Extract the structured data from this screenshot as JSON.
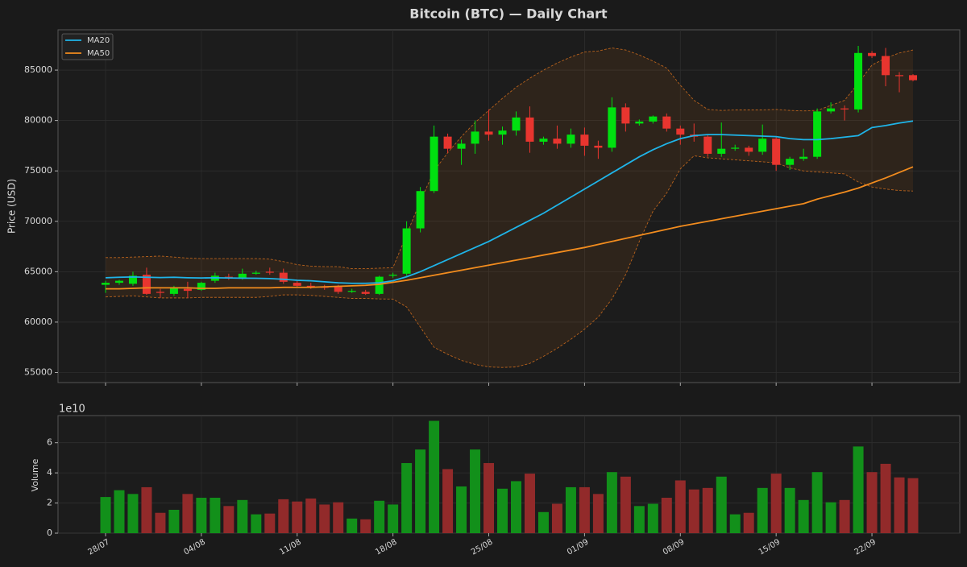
{
  "chart_data": [
    {
      "type": "candlestick",
      "title": "Bitcoin (BTC) — Daily Chart",
      "ylabel": "Price (USD)",
      "categories": [
        "28/07",
        null,
        null,
        null,
        null,
        null,
        null,
        "04/08",
        null,
        null,
        null,
        null,
        null,
        null,
        "11/08",
        null,
        null,
        null,
        null,
        null,
        null,
        "18/08",
        null,
        null,
        null,
        null,
        null,
        null,
        "25/08",
        null,
        null,
        null,
        null,
        null,
        null,
        "01/09",
        null,
        null,
        null,
        null,
        null,
        null,
        "08/09",
        null,
        null,
        null,
        null,
        null,
        null,
        "15/09",
        null,
        null,
        null,
        null,
        null,
        null,
        "22/09",
        null,
        null,
        null
      ],
      "open": [
        63700,
        63900,
        63800,
        64700,
        63000,
        62800,
        63300,
        63200,
        64100,
        64500,
        64300,
        64800,
        65000,
        64900,
        63900,
        63600,
        63500,
        63500,
        63000,
        63000,
        62800,
        64600,
        64800,
        69300,
        73000,
        78400,
        77200,
        77700,
        78900,
        78600,
        79000,
        80300,
        77900,
        78200,
        77700,
        78600,
        77500,
        77300,
        81300,
        79700,
        79900,
        80400,
        79200,
        78600,
        78400,
        76700,
        77200,
        77300,
        76900,
        78200,
        75600,
        76200,
        76400,
        80900,
        81200,
        81100,
        86700,
        86400,
        84500,
        84500
      ],
      "high": [
        64100,
        64200,
        65000,
        65400,
        63300,
        63600,
        64000,
        64000,
        64900,
        64800,
        65300,
        65100,
        65400,
        65300,
        64100,
        63900,
        63700,
        63700,
        63300,
        63200,
        64600,
        64900,
        70000,
        73400,
        79500,
        78700,
        78100,
        80000,
        81100,
        79400,
        80900,
        81400,
        78400,
        79500,
        79200,
        79300,
        78000,
        82300,
        81700,
        80100,
        80500,
        80700,
        79500,
        79700,
        78600,
        79800,
        77600,
        77500,
        79600,
        78400,
        76400,
        77200,
        81200,
        81800,
        81500,
        87400,
        86900,
        87200,
        84800,
        84600
      ],
      "low": [
        62900,
        63700,
        63600,
        62700,
        62400,
        62600,
        62400,
        63100,
        63900,
        64200,
        64200,
        64700,
        64700,
        63800,
        63500,
        63300,
        63200,
        62800,
        62900,
        62700,
        62700,
        64400,
        64600,
        68900,
        72800,
        76800,
        75600,
        76700,
        78000,
        77600,
        78500,
        76800,
        77600,
        77200,
        77300,
        76500,
        76200,
        76900,
        78900,
        79500,
        79700,
        78900,
        77600,
        77900,
        76400,
        76400,
        77000,
        76500,
        76600,
        75000,
        75100,
        76000,
        76200,
        80700,
        80000,
        80800,
        86200,
        83400,
        82800,
        83900
      ],
      "close": [
        63900,
        64100,
        64600,
        62800,
        62900,
        63400,
        63100,
        63900,
        64600,
        64400,
        64800,
        64900,
        64900,
        64000,
        63600,
        63500,
        63400,
        63000,
        63100,
        62800,
        64500,
        64700,
        69300,
        73000,
        78400,
        77200,
        77700,
        78900,
        78600,
        79000,
        80300,
        77900,
        78200,
        77700,
        78600,
        77500,
        77300,
        81300,
        79700,
        79900,
        80400,
        79200,
        78600,
        78400,
        76700,
        77200,
        77300,
        76900,
        78200,
        75600,
        76200,
        76400,
        80900,
        81200,
        81100,
        86700,
        86400,
        84500,
        84400,
        84000
      ],
      "up_color": "#00e010",
      "down_color": "#e8352f",
      "series": [
        {
          "name": "MA20",
          "color": "#1fb4e8",
          "values": [
            64400,
            64450,
            64480,
            64450,
            64420,
            64450,
            64400,
            64380,
            64400,
            64380,
            64360,
            64350,
            64320,
            64250,
            64150,
            64100,
            64000,
            63900,
            63850,
            63850,
            63900,
            64100,
            64500,
            65000,
            65600,
            66200,
            66800,
            67400,
            68000,
            68700,
            69400,
            70100,
            70800,
            71600,
            72400,
            73200,
            74000,
            74800,
            75600,
            76400,
            77100,
            77700,
            78200,
            78500,
            78600,
            78600,
            78550,
            78500,
            78450,
            78400,
            78200,
            78100,
            78100,
            78200,
            78350,
            78500,
            79300,
            79500,
            79750,
            79950
          ]
        },
        {
          "name": "MA50",
          "color": "#f28c1e",
          "values": [
            63300,
            63300,
            63350,
            63400,
            63400,
            63400,
            63400,
            63350,
            63350,
            63400,
            63400,
            63400,
            63400,
            63450,
            63450,
            63450,
            63500,
            63550,
            63600,
            63650,
            63750,
            63950,
            64150,
            64400,
            64650,
            64900,
            65150,
            65400,
            65650,
            65900,
            66150,
            66400,
            66650,
            66900,
            67150,
            67400,
            67700,
            68000,
            68300,
            68600,
            68900,
            69200,
            69500,
            69750,
            70000,
            70250,
            70500,
            70750,
            71000,
            71250,
            71500,
            71750,
            72200,
            72550,
            72900,
            73300,
            73800,
            74300,
            74850,
            75400
          ]
        }
      ],
      "band": {
        "color": "#b8621c",
        "upper": [
          66400,
          66400,
          66450,
          66500,
          66550,
          66450,
          66350,
          66300,
          66300,
          66300,
          66300,
          66300,
          66250,
          66000,
          65700,
          65550,
          65500,
          65500,
          65300,
          65300,
          65350,
          65400,
          68700,
          72000,
          75000,
          76800,
          78400,
          79800,
          81000,
          82200,
          83300,
          84200,
          85000,
          85700,
          86300,
          86800,
          86900,
          87200,
          87000,
          86500,
          85900,
          85200,
          83500,
          82000,
          81100,
          81000,
          81050,
          81050,
          81050,
          81100,
          81000,
          80950,
          81000,
          81500,
          82000,
          83700,
          85500,
          86200,
          86700,
          87000
        ],
        "lower": [
          62500,
          62550,
          62600,
          62500,
          62400,
          62400,
          62400,
          62450,
          62450,
          62450,
          62450,
          62450,
          62550,
          62700,
          62700,
          62650,
          62550,
          62450,
          62350,
          62350,
          62300,
          62280,
          61500,
          59500,
          57500,
          56800,
          56200,
          55800,
          55550,
          55500,
          55550,
          55900,
          56600,
          57400,
          58300,
          59300,
          60500,
          62300,
          64700,
          68000,
          71000,
          72800,
          75200,
          76500,
          76300,
          76200,
          76100,
          76000,
          75900,
          75800,
          75300,
          75000,
          74900,
          74800,
          74700,
          73900,
          73400,
          73200,
          73050,
          73000
        ]
      },
      "ylim": [
        54000,
        89000
      ],
      "yticks": [
        55000,
        60000,
        65000,
        70000,
        75000,
        80000,
        85000
      ],
      "grid": true,
      "legend": "upper left"
    },
    {
      "type": "bar",
      "ylabel": "Volume",
      "offset_label": "1e10",
      "values": [
        2.4,
        2.85,
        2.6,
        3.05,
        1.35,
        1.55,
        2.6,
        2.35,
        2.35,
        1.8,
        2.2,
        1.25,
        1.3,
        2.25,
        2.1,
        2.3,
        1.9,
        2.05,
        0.97,
        0.92,
        2.15,
        1.9,
        4.65,
        5.55,
        7.45,
        4.25,
        3.1,
        5.55,
        4.65,
        2.95,
        3.45,
        3.95,
        1.4,
        1.95,
        3.05,
        3.05,
        2.6,
        4.05,
        3.75,
        1.8,
        1.95,
        2.35,
        3.5,
        2.9,
        3.0,
        3.75,
        1.25,
        1.35,
        3.0,
        3.95,
        3.0,
        2.2,
        4.05,
        2.05,
        2.2,
        5.75,
        4.05,
        4.6,
        3.7,
        3.65
      ],
      "up_color": "#12901a",
      "down_color": "#922a2a",
      "ylim": [
        0,
        7.8
      ],
      "yticks": [
        0,
        2,
        4,
        6
      ],
      "grid": true
    }
  ]
}
